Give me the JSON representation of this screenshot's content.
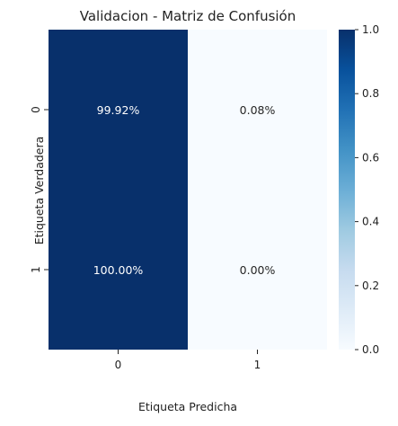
{
  "chart_data": {
    "type": "heatmap",
    "title": "Validacion - Matriz de Confusión",
    "xlabel": "Etiqueta Predicha",
    "ylabel": "Etiqueta Verdadera",
    "x_categories": [
      "0",
      "1"
    ],
    "y_categories": [
      "0",
      "1"
    ],
    "values": [
      [
        0.9992,
        0.0008
      ],
      [
        1.0,
        0.0
      ]
    ],
    "annotations": [
      [
        "99.92%",
        "0.08%"
      ],
      [
        "100.00%",
        "0.00%"
      ]
    ],
    "colorbar": {
      "range": [
        0.0,
        1.0
      ],
      "ticks": [
        "0.0",
        "0.2",
        "0.4",
        "0.6",
        "0.8",
        "1.0"
      ],
      "colormap": "Blues",
      "low_color": "#f7fbff",
      "high_color": "#08306b"
    }
  }
}
